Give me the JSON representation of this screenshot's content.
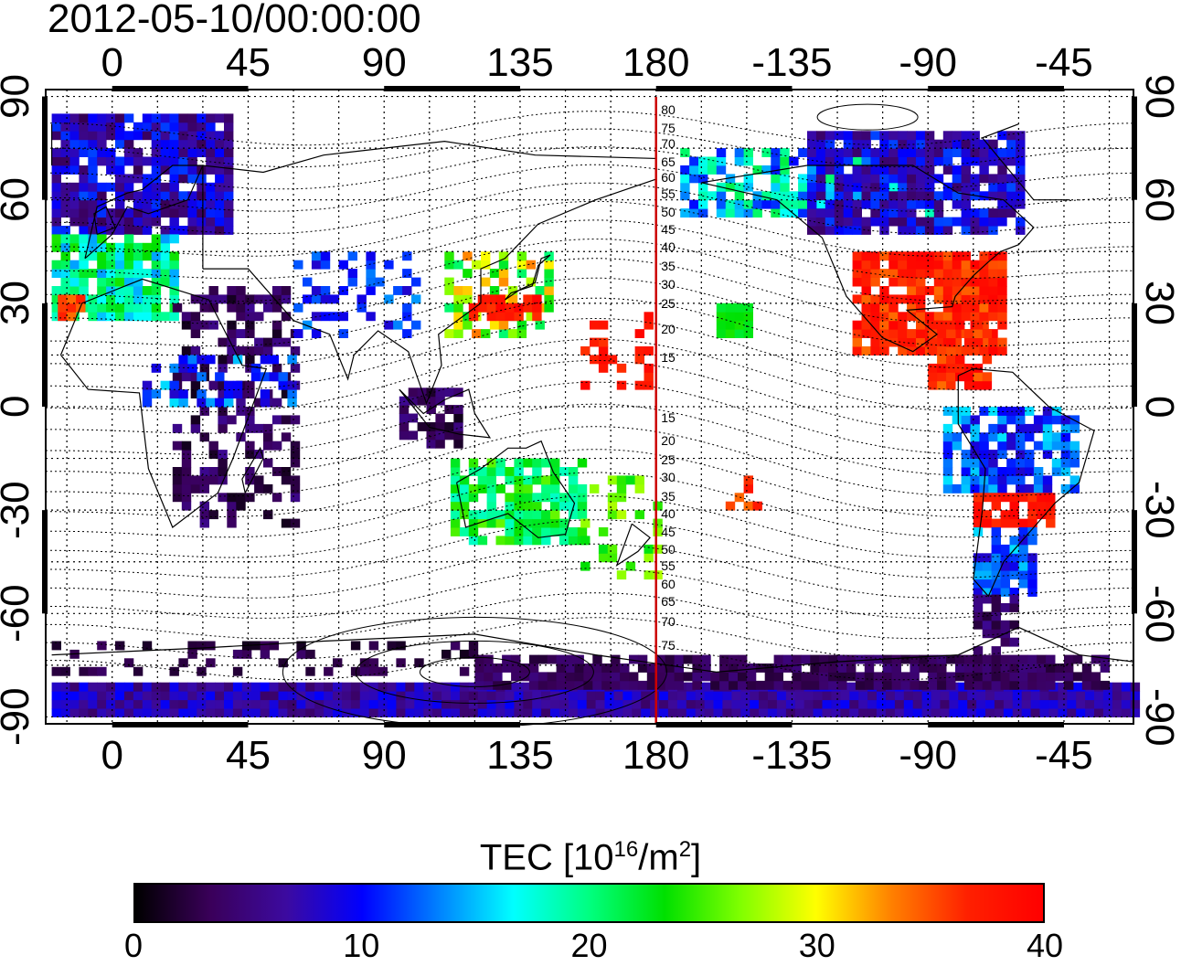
{
  "title": "2012-05-10/00:00:00",
  "map": {
    "lon_ticks_top": [
      "0",
      "45",
      "90",
      "135",
      "180",
      "-135",
      "-90",
      "-45"
    ],
    "lon_ticks_bottom": [
      "0",
      "45",
      "90",
      "135",
      "180",
      "-135",
      "-90",
      "-45"
    ],
    "lat_ticks_left": [
      "90",
      "60",
      "30",
      "0",
      "-30",
      "-60",
      "-90"
    ],
    "lat_ticks_right": [
      "90",
      "60",
      "30",
      "0",
      "-30",
      "-60",
      "-90"
    ],
    "lon_range": [
      -22,
      338
    ],
    "lat_range": [
      -92,
      92
    ],
    "meridian_line_lon": 180,
    "meridian_color": "#cc0000",
    "contour_labels": [
      "80",
      "75",
      "70",
      "65",
      "60",
      "55",
      "50",
      "45",
      "40",
      "35",
      "30",
      "25",
      "20",
      "15",
      "15",
      "20",
      "25",
      "30",
      "35",
      "40",
      "45",
      "50",
      "55",
      "60",
      "65",
      "70",
      "75"
    ]
  },
  "colorbar": {
    "label_main": "TEC  [10",
    "label_exp": "16",
    "label_unit": "/m",
    "label_unit_exp": "2",
    "label_close": "]",
    "ticks": [
      "0",
      "10",
      "20",
      "30",
      "40"
    ],
    "range": [
      0,
      40
    ],
    "colors": [
      "#000000",
      "#3a005a",
      "#3c0aa0",
      "#0000ff",
      "#0080ff",
      "#00ffff",
      "#00ff80",
      "#00e000",
      "#80ff00",
      "#ffff00",
      "#ff8000",
      "#ff2000",
      "#ff0000"
    ]
  }
}
